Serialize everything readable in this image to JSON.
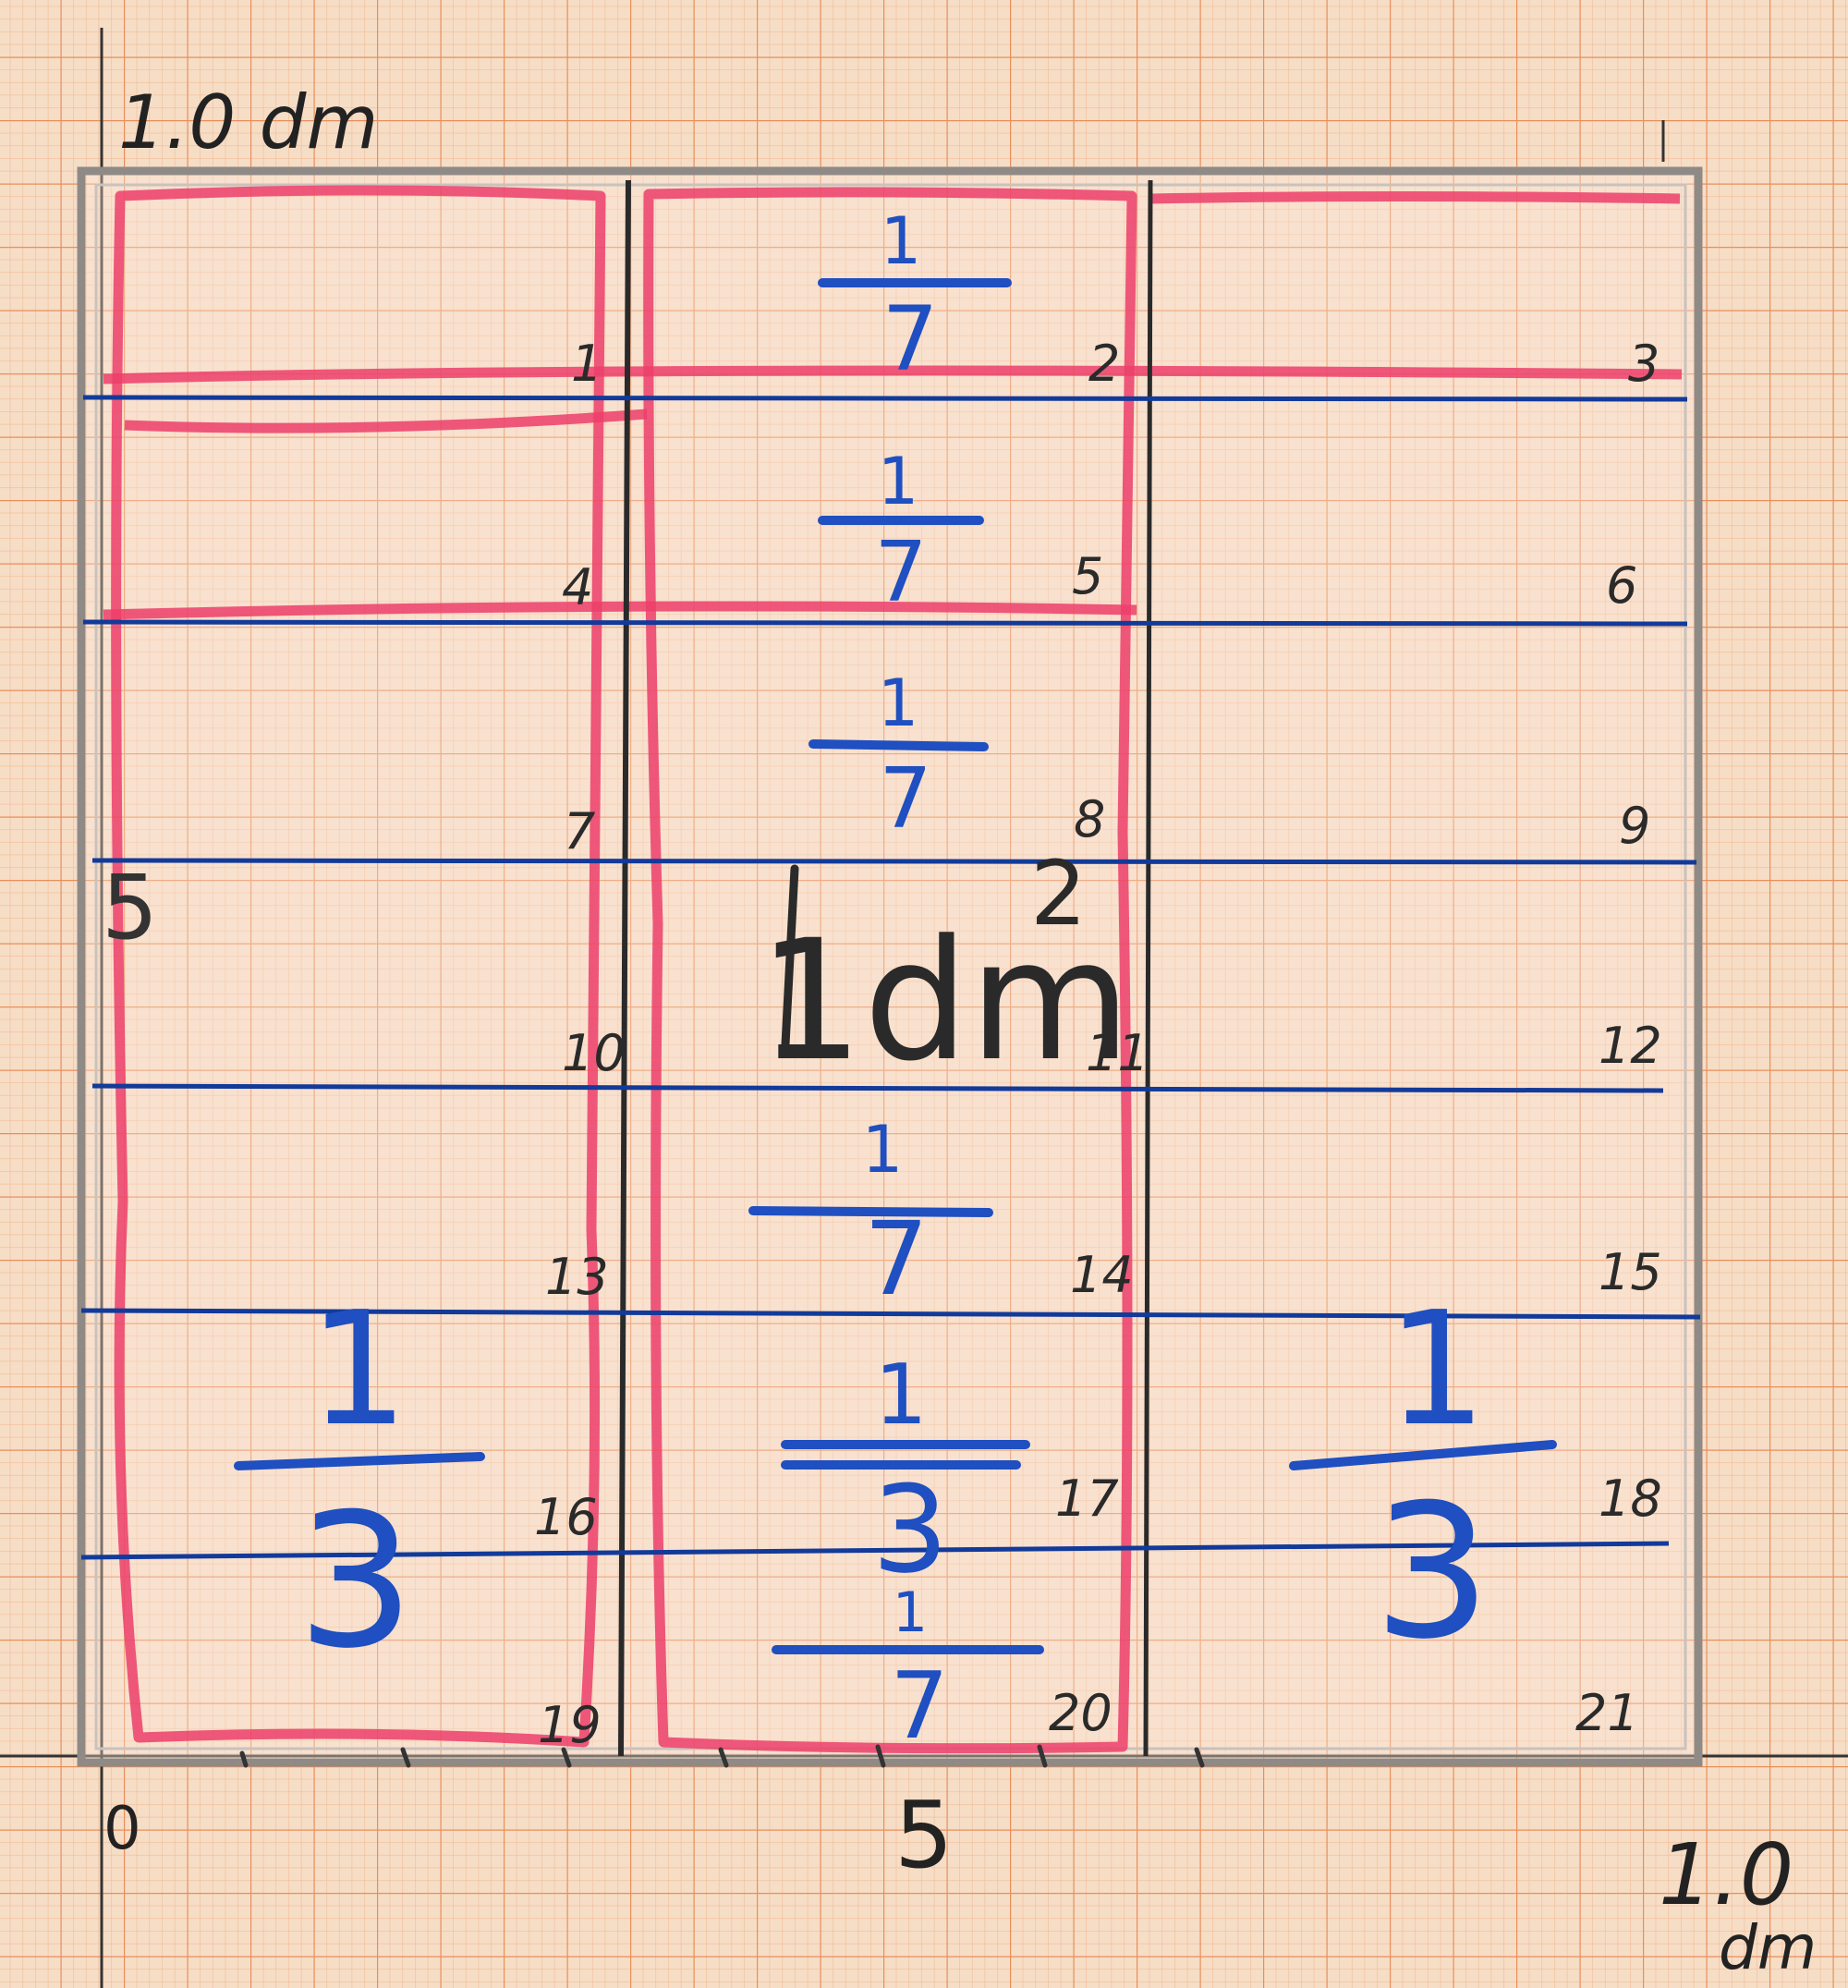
{
  "axis_labels": {
    "top_left": "1.0 dm",
    "left_mid": "5",
    "origin": "0",
    "bottom_mid": "5",
    "bottom_right": "1.0",
    "bottom_right_unit": "dm"
  },
  "center_label": "1dm",
  "center_label_2": "2",
  "cell_numbers": [
    "1",
    "2",
    "3",
    "4",
    "5",
    "6",
    "7",
    "8",
    "9",
    "10",
    "11",
    "12",
    "13",
    "14",
    "15",
    "16",
    "17",
    "18",
    "19",
    "20",
    "21"
  ],
  "fractions": {
    "sevenths": {
      "numerator": "1",
      "denominator": "7"
    },
    "thirds": {
      "numerator": "1",
      "denominator": "3"
    }
  },
  "colors": {
    "paper": "#f6ddc6",
    "grid_minor": "#f0b48c",
    "grid_major": "#e8915c",
    "red_marker": "#ec3e6a",
    "blue_marker": "#1f4fc0",
    "blue_line": "#123a9a",
    "ink": "#222222",
    "plastic_edge": "#9a9490"
  }
}
